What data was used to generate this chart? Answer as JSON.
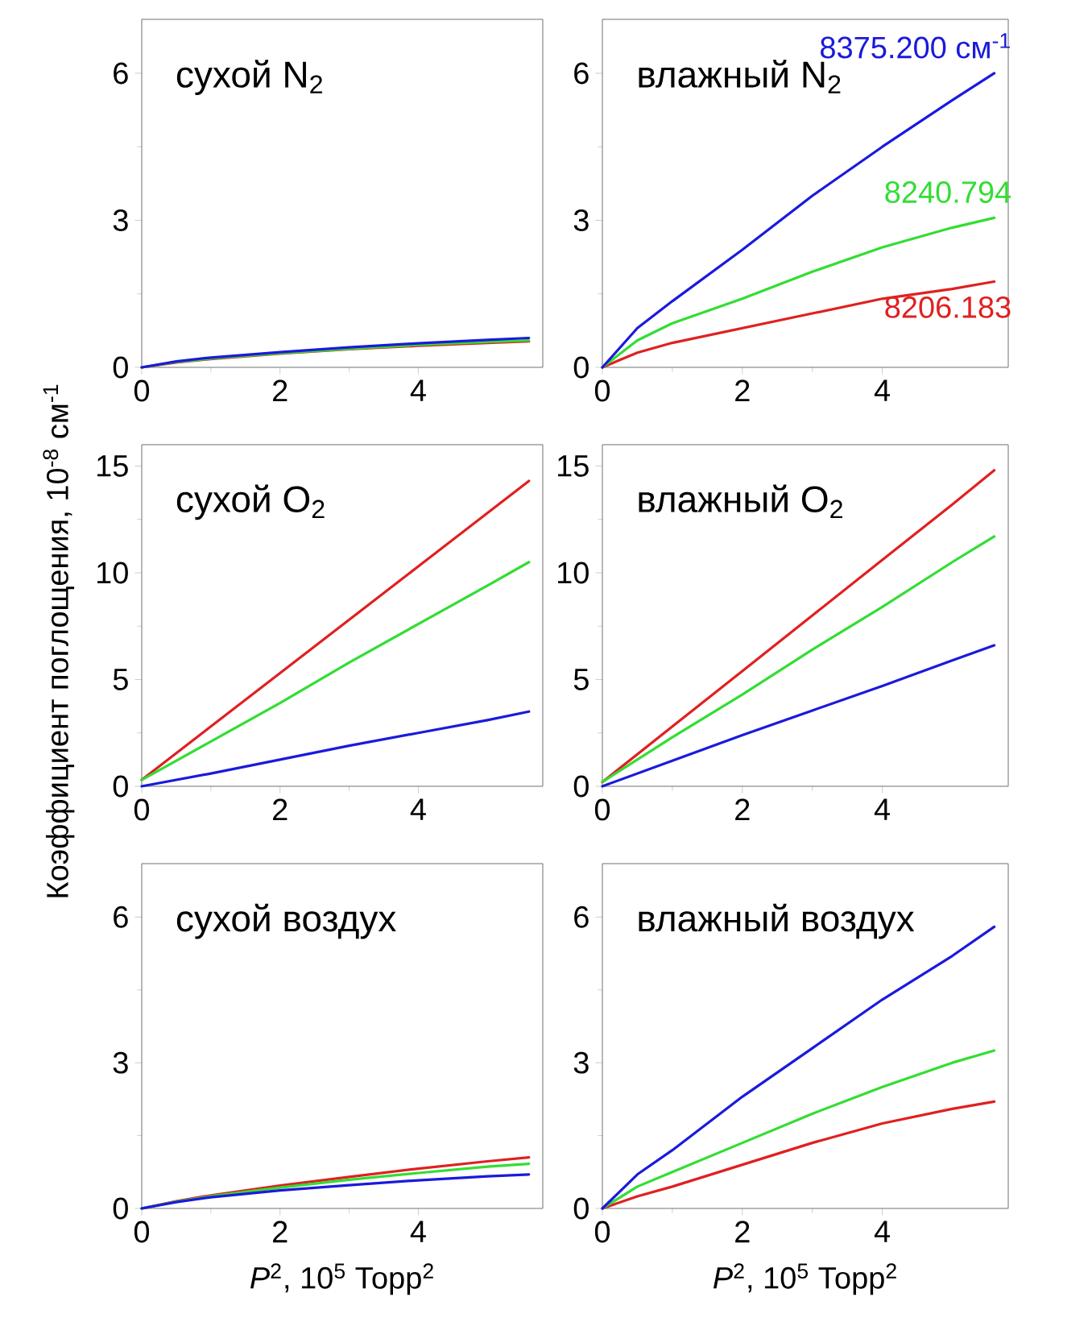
{
  "chart_data": [
    {
      "type": "line",
      "title": "сухой N$_{2}$",
      "x": [
        0,
        0.5,
        1,
        2,
        3,
        4,
        5,
        5.6
      ],
      "xlim": [
        0,
        5.8
      ],
      "ylim": [
        0,
        7.1
      ],
      "xticks": [
        0,
        2,
        4
      ],
      "yticks": [
        0,
        3,
        6
      ],
      "series": [
        {
          "color": "#e02020",
          "values": [
            0,
            0.1,
            0.17,
            0.28,
            0.37,
            0.44,
            0.5,
            0.53
          ]
        },
        {
          "color": "#33dd33",
          "values": [
            0,
            0.11,
            0.18,
            0.29,
            0.38,
            0.46,
            0.52,
            0.55
          ]
        },
        {
          "color": "#1a1adc",
          "values": [
            0,
            0.12,
            0.2,
            0.31,
            0.41,
            0.49,
            0.56,
            0.6
          ]
        }
      ]
    },
    {
      "type": "line",
      "title": "влажный N$_{2}$",
      "x": [
        0,
        0.5,
        1,
        2,
        3,
        4,
        5,
        5.6
      ],
      "xlim": [
        0,
        5.8
      ],
      "ylim": [
        0,
        7.1
      ],
      "xticks": [
        0,
        2,
        4
      ],
      "yticks": [
        0,
        3,
        6
      ],
      "series": [
        {
          "name": "8206.183",
          "color": "#e02020",
          "values": [
            0,
            0.3,
            0.5,
            0.8,
            1.1,
            1.4,
            1.6,
            1.75
          ]
        },
        {
          "name": "8240.794",
          "color": "#33dd33",
          "values": [
            0,
            0.55,
            0.9,
            1.4,
            1.95,
            2.45,
            2.85,
            3.05
          ]
        },
        {
          "name": "8375.200 см$^{-1}$",
          "color": "#1a1adc",
          "values": [
            0,
            0.8,
            1.35,
            2.4,
            3.5,
            4.5,
            5.45,
            6.0
          ]
        }
      ]
    },
    {
      "type": "line",
      "title": "сухой O$_{2}$",
      "ylabel": "Коэффициент поглощения, 10$^{-8}$ см$^{-1}$",
      "x": [
        0,
        1,
        2,
        3,
        4,
        5,
        5.6
      ],
      "xlim": [
        0,
        5.8
      ],
      "ylim": [
        0,
        16
      ],
      "xticks": [
        0,
        2,
        4
      ],
      "yticks": [
        0,
        5,
        10,
        15
      ],
      "series": [
        {
          "color": "#e02020",
          "values": [
            0.3,
            2.8,
            5.3,
            7.8,
            10.3,
            12.8,
            14.3
          ]
        },
        {
          "color": "#33dd33",
          "values": [
            0.3,
            2.1,
            3.9,
            5.8,
            7.6,
            9.4,
            10.5
          ]
        },
        {
          "color": "#1a1adc",
          "values": [
            0,
            0.6,
            1.25,
            1.9,
            2.5,
            3.1,
            3.5
          ]
        }
      ]
    },
    {
      "type": "line",
      "title": "влажный O$_{2}$",
      "x": [
        0,
        1,
        2,
        3,
        4,
        5,
        5.6
      ],
      "xlim": [
        0,
        5.8
      ],
      "ylim": [
        0,
        16
      ],
      "xticks": [
        0,
        2,
        4
      ],
      "yticks": [
        0,
        5,
        10,
        15
      ],
      "series": [
        {
          "color": "#e02020",
          "values": [
            0.2,
            2.8,
            5.4,
            8.0,
            10.6,
            13.2,
            14.8
          ]
        },
        {
          "color": "#33dd33",
          "values": [
            0.2,
            2.3,
            4.3,
            6.4,
            8.4,
            10.5,
            11.7
          ]
        },
        {
          "color": "#1a1adc",
          "values": [
            0,
            1.2,
            2.4,
            3.55,
            4.7,
            5.9,
            6.6
          ]
        }
      ]
    },
    {
      "type": "line",
      "title": "сухой воздух",
      "xlabel": "*P*$^{2}$, 10$^{5}$ Торр$^{2}$",
      "x": [
        0,
        0.5,
        1,
        2,
        3,
        4,
        5,
        5.6
      ],
      "xlim": [
        0,
        5.8
      ],
      "ylim": [
        0,
        7.1
      ],
      "xticks": [
        0,
        2,
        4
      ],
      "yticks": [
        0,
        3,
        6
      ],
      "series": [
        {
          "color": "#e02020",
          "values": [
            0,
            0.15,
            0.27,
            0.47,
            0.65,
            0.82,
            0.97,
            1.05
          ]
        },
        {
          "color": "#33dd33",
          "values": [
            0,
            0.14,
            0.25,
            0.43,
            0.59,
            0.73,
            0.86,
            0.92
          ]
        },
        {
          "color": "#1a1adc",
          "values": [
            0,
            0.13,
            0.23,
            0.37,
            0.48,
            0.58,
            0.66,
            0.7
          ]
        }
      ]
    },
    {
      "type": "line",
      "title": "влажный воздух",
      "xlabel": "*P*$^{2}$, 10$^{5}$ Торр$^{2}$",
      "x": [
        0,
        0.5,
        1,
        2,
        3,
        4,
        5,
        5.6
      ],
      "xlim": [
        0,
        5.8
      ],
      "ylim": [
        0,
        7.1
      ],
      "xticks": [
        0,
        2,
        4
      ],
      "yticks": [
        0,
        3,
        6
      ],
      "series": [
        {
          "color": "#e02020",
          "values": [
            0,
            0.25,
            0.45,
            0.9,
            1.35,
            1.75,
            2.05,
            2.2
          ]
        },
        {
          "color": "#33dd33",
          "values": [
            0,
            0.45,
            0.75,
            1.35,
            1.95,
            2.5,
            3.0,
            3.25
          ]
        },
        {
          "color": "#1a1adc",
          "values": [
            0,
            0.7,
            1.2,
            2.3,
            3.3,
            4.3,
            5.2,
            5.8
          ]
        }
      ]
    }
  ]
}
